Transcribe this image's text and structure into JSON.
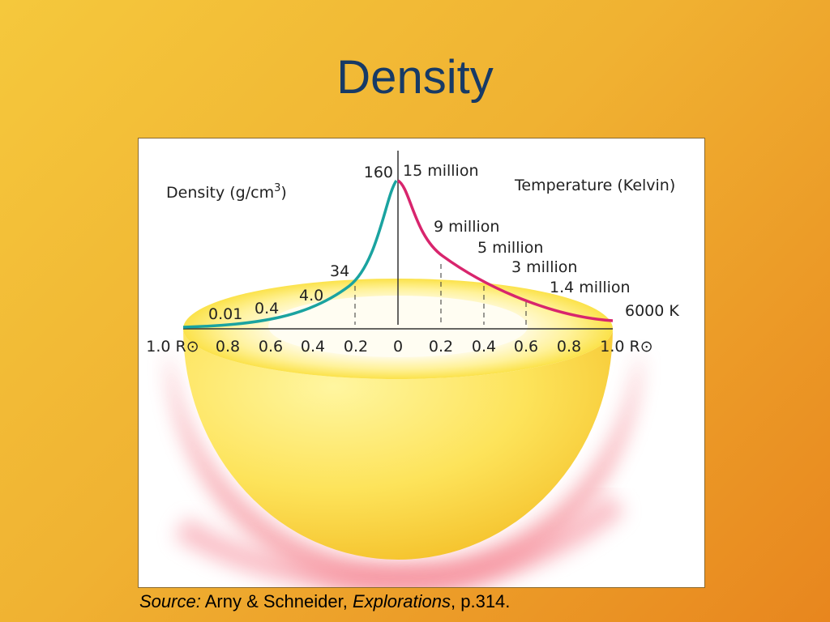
{
  "title": "Density",
  "diagram": {
    "density_label": {
      "text": "Density (g/cm",
      "sup": "3",
      "end": ")"
    },
    "temperature_label": "Temperature (Kelvin)",
    "density_values": [
      "160",
      "34",
      "4.0",
      "0.4",
      "0.01"
    ],
    "temperature_values": [
      "15 million",
      "9 million",
      "5 million",
      "3 million",
      "1.4 million",
      "6000 K"
    ],
    "radius_ticks": [
      "1.0 R⊙",
      "0.8",
      "0.6",
      "0.4",
      "0.2",
      "0",
      "0.2",
      "0.4",
      "0.6",
      "0.8",
      "1.0 R⊙"
    ]
  },
  "source": {
    "label": "Source:",
    "authors": " Arny & Schneider, ",
    "book": "Explorations",
    "page": ", p.314."
  }
}
